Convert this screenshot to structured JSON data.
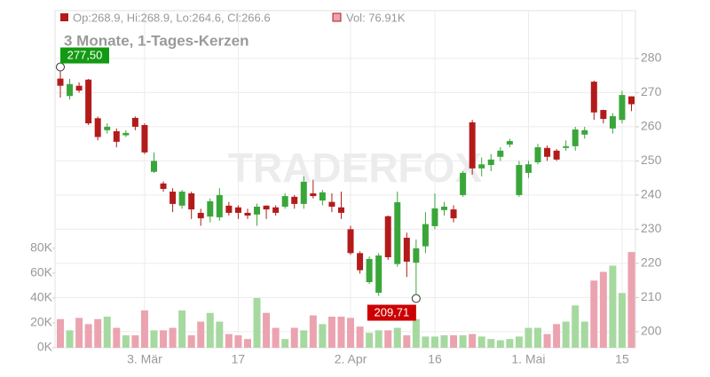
{
  "chart_data": {
    "type": "candlestick",
    "header_price": "Op:268.9, Hi:268.9, Lo:264.6, Cl:266.6",
    "header_volume": "Vol: 76.91K",
    "subtitle": "3 Monate, 1-Tages-Kerzen",
    "watermark": "TRADERFOX",
    "categories": [
      null,
      null,
      null,
      null,
      null,
      null,
      null,
      null,
      null,
      "3. Mär",
      null,
      null,
      null,
      null,
      null,
      null,
      null,
      null,
      null,
      "17",
      null,
      null,
      null,
      null,
      null,
      null,
      null,
      null,
      null,
      null,
      null,
      "2. Apr",
      null,
      null,
      null,
      null,
      null,
      null,
      null,
      null,
      "16",
      null,
      null,
      null,
      null,
      null,
      null,
      null,
      null,
      null,
      "1. Mai",
      null,
      null,
      null,
      null,
      null,
      null,
      null,
      null,
      null,
      "15",
      null
    ],
    "open": [
      274.1,
      269,
      272,
      273.8,
      262.5,
      259,
      258.7,
      257.5,
      262.6,
      260.5,
      246.8,
      243.4,
      241,
      236.9,
      240.5,
      234.8,
      233.7,
      233.5,
      236.9,
      236.4,
      234.8,
      234.3,
      236.9,
      236.4,
      236.6,
      239.5,
      237.4,
      240.5,
      238.4,
      238,
      236.4,
      230,
      223,
      214.5,
      211.4,
      233.8,
      219.8,
      227.5,
      220.2,
      225,
      230.9,
      235.6,
      235.8,
      240,
      261.3,
      247.8,
      248.8,
      251.2,
      254.8,
      240,
      246.5,
      249.6,
      253.8,
      253,
      253.8,
      254.3,
      257.7,
      273.2,
      264.9,
      259.5,
      262,
      268.9
    ],
    "high": [
      277.5,
      274,
      273,
      274,
      263,
      261,
      259.5,
      259,
      263,
      261,
      252.5,
      244,
      242,
      241.5,
      241,
      236,
      239,
      242,
      238,
      237,
      236,
      237.5,
      237,
      237,
      240.5,
      240,
      245.5,
      244.5,
      241.5,
      240.5,
      241,
      231,
      223.5,
      222,
      223,
      234,
      241,
      229,
      227,
      235,
      240.5,
      238,
      237,
      247,
      262,
      251,
      252,
      254,
      256.5,
      250,
      250,
      255,
      254.5,
      253.5,
      256,
      260,
      260,
      273.5,
      265,
      264,
      270.5,
      268.9
    ],
    "low": [
      268.5,
      268,
      270,
      260.5,
      256,
      258,
      254,
      257,
      259,
      252,
      246.5,
      241,
      235,
      236,
      233,
      231,
      232,
      232.5,
      234,
      233,
      233,
      231,
      233,
      234,
      236,
      236,
      236,
      239,
      237,
      235,
      233,
      222.5,
      217,
      214,
      210.5,
      221,
      219,
      216,
      209.71,
      223,
      230,
      234,
      232,
      239.5,
      246,
      245.5,
      247,
      250,
      254,
      239.5,
      245,
      249,
      250,
      250,
      253,
      253,
      256.5,
      262,
      261,
      258,
      261,
      264.6
    ],
    "close": [
      272,
      272.5,
      270.6,
      261,
      257,
      260,
      255.6,
      258.2,
      260,
      252.5,
      250,
      241.8,
      237.4,
      241,
      235.8,
      233.2,
      238.2,
      240,
      234.8,
      234.8,
      234,
      236.6,
      235.8,
      234.8,
      239.7,
      237.4,
      243.9,
      239.7,
      240.8,
      236.6,
      234.8,
      223,
      218,
      221.3,
      222.3,
      221.8,
      237.9,
      220.5,
      224.4,
      231.5,
      236.1,
      236.6,
      233.2,
      246.5,
      247.8,
      249,
      250.4,
      253,
      255.8,
      248.8,
      249,
      254,
      251.2,
      250.4,
      254.3,
      259.2,
      259,
      264.2,
      262.3,
      263.1,
      269.3,
      266.6
    ],
    "volume": [
      23,
      14,
      24,
      19,
      23,
      25,
      16,
      10,
      10,
      30,
      14,
      14,
      16,
      30,
      10,
      21,
      28,
      21,
      11,
      10,
      7,
      40,
      28,
      16,
      7,
      16,
      14,
      26,
      19,
      25,
      25,
      24,
      17,
      12,
      14,
      14,
      16,
      10,
      23,
      9,
      9,
      10,
      10,
      10,
      11,
      9,
      7,
      6,
      7,
      9,
      16,
      16,
      11,
      19,
      21,
      34,
      21,
      54,
      61,
      66,
      44,
      76.91
    ],
    "ylim": [
      195.3,
      294
    ],
    "yticks": [
      200,
      210,
      220,
      230,
      240,
      250,
      260,
      270,
      280
    ],
    "vlim": [
      0,
      271
    ],
    "vticks": [
      {
        "value": 0,
        "label": "0K"
      },
      {
        "value": 20,
        "label": "20K"
      },
      {
        "value": 40,
        "label": "40K"
      },
      {
        "value": 60,
        "label": "60K"
      },
      {
        "value": 80,
        "label": "80K"
      }
    ],
    "max_high": {
      "value": 277.5,
      "label": "277,50",
      "color": "#139a13"
    },
    "min_low": {
      "value": 209.71,
      "label": "209,71",
      "color": "#cc0000"
    },
    "up_color": "#3aa63a",
    "down_color": "#b31b1b",
    "up_volume_color": "#a6d9a0",
    "down_volume_color": "#eba3b0",
    "grid": true
  }
}
